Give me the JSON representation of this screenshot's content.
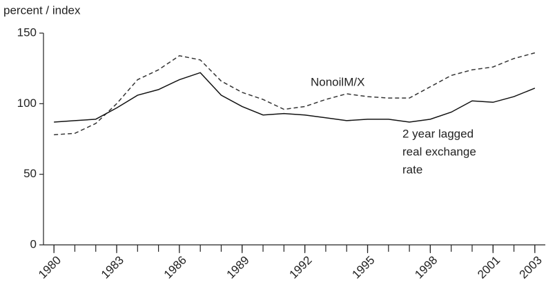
{
  "chart_data": {
    "type": "line",
    "y_label": "percent / index",
    "x": [
      1980,
      1981,
      1982,
      1983,
      1984,
      1985,
      1986,
      1987,
      1988,
      1989,
      1990,
      1991,
      1992,
      1993,
      1994,
      1995,
      1996,
      1997,
      1998,
      1999,
      2000,
      2001,
      2002,
      2003
    ],
    "series": [
      {
        "name": "NonoilM/X",
        "color": "#333333",
        "dash": true,
        "values": [
          78,
          79,
          86,
          100,
          117,
          124,
          134,
          131,
          116,
          108,
          103,
          96,
          98,
          103,
          107,
          105,
          104,
          104,
          112,
          120,
          124,
          126,
          132,
          136
        ]
      },
      {
        "name": "2 year lagged real exchange rate",
        "color": "#111111",
        "dash": false,
        "values": [
          87,
          88,
          89,
          97,
          106,
          110,
          117,
          122,
          106,
          98,
          92,
          93,
          92,
          90,
          88,
          89,
          89,
          87,
          89,
          94,
          102,
          101,
          105,
          111
        ]
      }
    ],
    "annotations": [
      [
        "NonoilM/X"
      ],
      [
        "2 year lagged",
        "real exchange",
        "rate"
      ]
    ],
    "xlim": [
      1979.5,
      2003.5
    ],
    "xticks": [
      1980,
      1983,
      1986,
      1989,
      1992,
      1995,
      1998,
      2001,
      2003
    ],
    "ylim": [
      0,
      150
    ],
    "yticks": [
      0,
      50,
      100,
      150
    ]
  }
}
